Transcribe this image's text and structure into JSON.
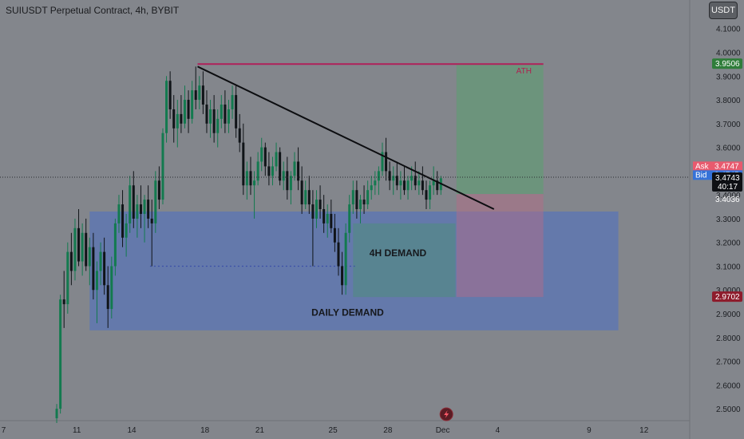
{
  "header": {
    "title": "SUIUSDT Perpetual Contract, 4h, BYBIT",
    "currency_button": "USDT"
  },
  "chart_data": {
    "type": "candlestick",
    "symbol": "SUIUSDT Perpetual Contract",
    "interval": "4h",
    "exchange": "BYBIT",
    "y_ticks": [
      4.1,
      4.0,
      3.9,
      3.8,
      3.7,
      3.6,
      3.5,
      3.4,
      3.3,
      3.2,
      3.1,
      3.0,
      2.9,
      2.8,
      2.7,
      2.6,
      2.5
    ],
    "y_tick_labels": [
      "4.1000",
      "4.0000",
      "3.9000",
      "3.8000",
      "3.7000",
      "3.6000",
      "3.5000",
      "3.4000",
      "3.3000",
      "3.2000",
      "3.1000",
      "3.0000",
      "2.9000",
      "2.8000",
      "2.7000",
      "2.6000",
      "2.5000"
    ],
    "y_range": [
      2.45,
      4.22
    ],
    "x_ticks": [
      {
        "label": "7",
        "day": 7
      },
      {
        "label": "11",
        "day": 11
      },
      {
        "label": "14",
        "day": 14
      },
      {
        "label": "18",
        "day": 18
      },
      {
        "label": "21",
        "day": 21
      },
      {
        "label": "25",
        "day": 25
      },
      {
        "label": "28",
        "day": 28
      },
      {
        "label": "Dec",
        "day": 31
      },
      {
        "label": "4",
        "day": 34
      },
      {
        "label": "9",
        "day": 39
      },
      {
        "label": "12",
        "day": 42
      }
    ],
    "x_range": [
      6.8,
      44.5
    ],
    "zones": [
      {
        "label": "DAILY DEMAND",
        "x_from": 11.7,
        "x_to": 40.6,
        "y_from": 2.83,
        "y_to": 3.33,
        "color": "#4a6fc4"
      },
      {
        "label": "4H DEMAND",
        "x_from": 26.1,
        "x_to": 31.7,
        "y_from": 2.97,
        "y_to": 3.28,
        "color": "#4f8e7c"
      }
    ],
    "trade": {
      "entry": 3.4036,
      "target": 3.9506,
      "stop": 2.9702,
      "x_from": 31.75,
      "x_to": 36.5
    },
    "ath": {
      "label": "ATH",
      "value": 3.9506,
      "x_from": 17.6,
      "x_to": 36.5
    },
    "trendline": {
      "x_from": 17.6,
      "y_from": 3.94,
      "x_to": 33.8,
      "y_to": 3.34
    },
    "support_dotted": {
      "x_from": 15.0,
      "x_to": 26.2,
      "y": 3.1
    },
    "current_price": 3.4743,
    "countdown": "40:17",
    "ask": {
      "label": "Ask",
      "value": "3.4747"
    },
    "bid": {
      "label": "Bid",
      "value": "3.4745"
    },
    "price_tags": {
      "target": "3.9506",
      "current": "3.4743",
      "entry": "3.4036",
      "stop": "2.9702"
    },
    "candles": [
      [
        9.9,
        2.46,
        2.52,
        2.44,
        2.5
      ],
      [
        10.1,
        2.5,
        2.98,
        2.48,
        2.96
      ],
      [
        10.3,
        2.96,
        3.08,
        2.84,
        2.94
      ],
      [
        10.5,
        2.94,
        3.2,
        2.9,
        3.16
      ],
      [
        10.7,
        3.16,
        3.24,
        3.02,
        3.08
      ],
      [
        10.9,
        3.08,
        3.3,
        3.04,
        3.26
      ],
      [
        11.1,
        3.26,
        3.34,
        3.1,
        3.12
      ],
      [
        11.3,
        3.12,
        3.28,
        3.06,
        3.24
      ],
      [
        11.5,
        3.24,
        3.3,
        3.08,
        3.1
      ],
      [
        11.7,
        3.1,
        3.22,
        3.02,
        3.18
      ],
      [
        11.9,
        3.18,
        3.24,
        2.96,
        3.0
      ],
      [
        12.1,
        3.0,
        3.12,
        2.86,
        3.08
      ],
      [
        12.3,
        3.08,
        3.2,
        3.02,
        3.16
      ],
      [
        12.5,
        3.16,
        3.22,
        2.98,
        3.02
      ],
      [
        12.7,
        3.02,
        3.1,
        2.84,
        2.92
      ],
      [
        12.9,
        2.92,
        3.14,
        2.88,
        3.1
      ],
      [
        13.1,
        3.1,
        3.3,
        3.06,
        3.28
      ],
      [
        13.3,
        3.28,
        3.4,
        3.24,
        3.36
      ],
      [
        13.5,
        3.36,
        3.42,
        3.18,
        3.22
      ],
      [
        13.7,
        3.22,
        3.32,
        3.14,
        3.28
      ],
      [
        13.9,
        3.28,
        3.48,
        3.24,
        3.44
      ],
      [
        14.1,
        3.44,
        3.5,
        3.26,
        3.3
      ],
      [
        14.3,
        3.3,
        3.4,
        3.22,
        3.36
      ],
      [
        14.5,
        3.36,
        3.44,
        3.26,
        3.32
      ],
      [
        14.7,
        3.32,
        3.4,
        3.2,
        3.38
      ],
      [
        14.9,
        3.38,
        3.44,
        3.26,
        3.3
      ],
      [
        15.1,
        3.3,
        3.38,
        3.1,
        3.28
      ],
      [
        15.3,
        3.28,
        3.5,
        3.24,
        3.46
      ],
      [
        15.5,
        3.46,
        3.52,
        3.34,
        3.38
      ],
      [
        15.7,
        3.38,
        3.68,
        3.36,
        3.66
      ],
      [
        15.9,
        3.66,
        3.9,
        3.62,
        3.88
      ],
      [
        16.1,
        3.88,
        3.92,
        3.72,
        3.76
      ],
      [
        16.3,
        3.76,
        3.82,
        3.62,
        3.68
      ],
      [
        16.5,
        3.68,
        3.8,
        3.6,
        3.74
      ],
      [
        16.7,
        3.74,
        3.82,
        3.66,
        3.7
      ],
      [
        16.9,
        3.7,
        3.86,
        3.68,
        3.8
      ],
      [
        17.1,
        3.8,
        3.84,
        3.66,
        3.72
      ],
      [
        17.3,
        3.72,
        3.88,
        3.7,
        3.84
      ],
      [
        17.5,
        3.84,
        3.94,
        3.76,
        3.8
      ],
      [
        17.7,
        3.8,
        3.9,
        3.76,
        3.86
      ],
      [
        17.9,
        3.86,
        3.92,
        3.74,
        3.78
      ],
      [
        18.1,
        3.78,
        3.84,
        3.66,
        3.7
      ],
      [
        18.3,
        3.7,
        3.8,
        3.64,
        3.76
      ],
      [
        18.5,
        3.76,
        3.82,
        3.62,
        3.66
      ],
      [
        18.7,
        3.66,
        3.76,
        3.6,
        3.72
      ],
      [
        18.9,
        3.72,
        3.82,
        3.68,
        3.78
      ],
      [
        19.1,
        3.78,
        3.84,
        3.66,
        3.7
      ],
      [
        19.3,
        3.7,
        3.8,
        3.66,
        3.76
      ],
      [
        19.5,
        3.76,
        3.86,
        3.72,
        3.82
      ],
      [
        19.7,
        3.82,
        3.86,
        3.64,
        3.68
      ],
      [
        19.9,
        3.68,
        3.74,
        3.58,
        3.62
      ],
      [
        20.1,
        3.62,
        3.7,
        3.4,
        3.44
      ],
      [
        20.3,
        3.44,
        3.54,
        3.38,
        3.5
      ],
      [
        20.5,
        3.5,
        3.56,
        3.4,
        3.44
      ],
      [
        20.7,
        3.44,
        3.5,
        3.3,
        3.46
      ],
      [
        20.9,
        3.46,
        3.58,
        3.44,
        3.54
      ],
      [
        21.1,
        3.54,
        3.64,
        3.5,
        3.6
      ],
      [
        21.3,
        3.6,
        3.62,
        3.48,
        3.52
      ],
      [
        21.5,
        3.52,
        3.58,
        3.44,
        3.48
      ],
      [
        21.7,
        3.48,
        3.56,
        3.44,
        3.52
      ],
      [
        21.9,
        3.52,
        3.62,
        3.5,
        3.58
      ],
      [
        22.1,
        3.58,
        3.6,
        3.44,
        3.46
      ],
      [
        22.3,
        3.46,
        3.54,
        3.42,
        3.5
      ],
      [
        22.5,
        3.5,
        3.56,
        3.38,
        3.42
      ],
      [
        22.7,
        3.42,
        3.5,
        3.36,
        3.48
      ],
      [
        22.9,
        3.48,
        3.58,
        3.46,
        3.54
      ],
      [
        23.1,
        3.54,
        3.6,
        3.42,
        3.46
      ],
      [
        23.3,
        3.46,
        3.52,
        3.32,
        3.36
      ],
      [
        23.5,
        3.36,
        3.46,
        3.34,
        3.42
      ],
      [
        23.7,
        3.42,
        3.48,
        3.32,
        3.36
      ],
      [
        23.9,
        3.36,
        3.42,
        3.1,
        3.3
      ],
      [
        24.1,
        3.3,
        3.42,
        3.26,
        3.38
      ],
      [
        24.3,
        3.38,
        3.44,
        3.3,
        3.34
      ],
      [
        24.5,
        3.34,
        3.4,
        3.24,
        3.28
      ],
      [
        24.7,
        3.28,
        3.36,
        3.22,
        3.32
      ],
      [
        24.9,
        3.32,
        3.38,
        3.24,
        3.26
      ],
      [
        25.1,
        3.26,
        3.32,
        3.16,
        3.2
      ],
      [
        25.3,
        3.2,
        3.26,
        3.06,
        3.1
      ],
      [
        25.5,
        3.1,
        3.16,
        2.98,
        3.02
      ],
      [
        25.7,
        3.02,
        3.28,
        2.98,
        3.24
      ],
      [
        25.9,
        3.24,
        3.4,
        3.2,
        3.36
      ],
      [
        26.1,
        3.36,
        3.46,
        3.32,
        3.42
      ],
      [
        26.3,
        3.42,
        3.46,
        3.3,
        3.34
      ],
      [
        26.5,
        3.34,
        3.4,
        3.28,
        3.38
      ],
      [
        26.7,
        3.38,
        3.44,
        3.32,
        3.36
      ],
      [
        26.9,
        3.36,
        3.46,
        3.34,
        3.42
      ],
      [
        27.1,
        3.42,
        3.48,
        3.38,
        3.44
      ],
      [
        27.3,
        3.44,
        3.5,
        3.4,
        3.46
      ],
      [
        27.5,
        3.46,
        3.52,
        3.4,
        3.5
      ],
      [
        27.7,
        3.5,
        3.62,
        3.48,
        3.58
      ],
      [
        27.9,
        3.58,
        3.64,
        3.46,
        3.5
      ],
      [
        28.1,
        3.5,
        3.54,
        3.42,
        3.46
      ],
      [
        28.3,
        3.46,
        3.52,
        3.4,
        3.48
      ],
      [
        28.5,
        3.48,
        3.54,
        3.42,
        3.44
      ],
      [
        28.7,
        3.44,
        3.5,
        3.38,
        3.46
      ],
      [
        28.9,
        3.46,
        3.52,
        3.4,
        3.42
      ],
      [
        29.1,
        3.42,
        3.48,
        3.38,
        3.46
      ],
      [
        29.3,
        3.46,
        3.52,
        3.42,
        3.48
      ],
      [
        29.5,
        3.48,
        3.54,
        3.42,
        3.44
      ],
      [
        29.7,
        3.44,
        3.5,
        3.4,
        3.46
      ],
      [
        29.9,
        3.46,
        3.52,
        3.4,
        3.42
      ],
      [
        30.1,
        3.42,
        3.46,
        3.34,
        3.38
      ],
      [
        30.3,
        3.38,
        3.46,
        3.34,
        3.44
      ],
      [
        30.5,
        3.44,
        3.52,
        3.4,
        3.46
      ],
      [
        30.7,
        3.46,
        3.5,
        3.4,
        3.42
      ],
      [
        30.9,
        3.42,
        3.48,
        3.4,
        3.47
      ]
    ]
  }
}
